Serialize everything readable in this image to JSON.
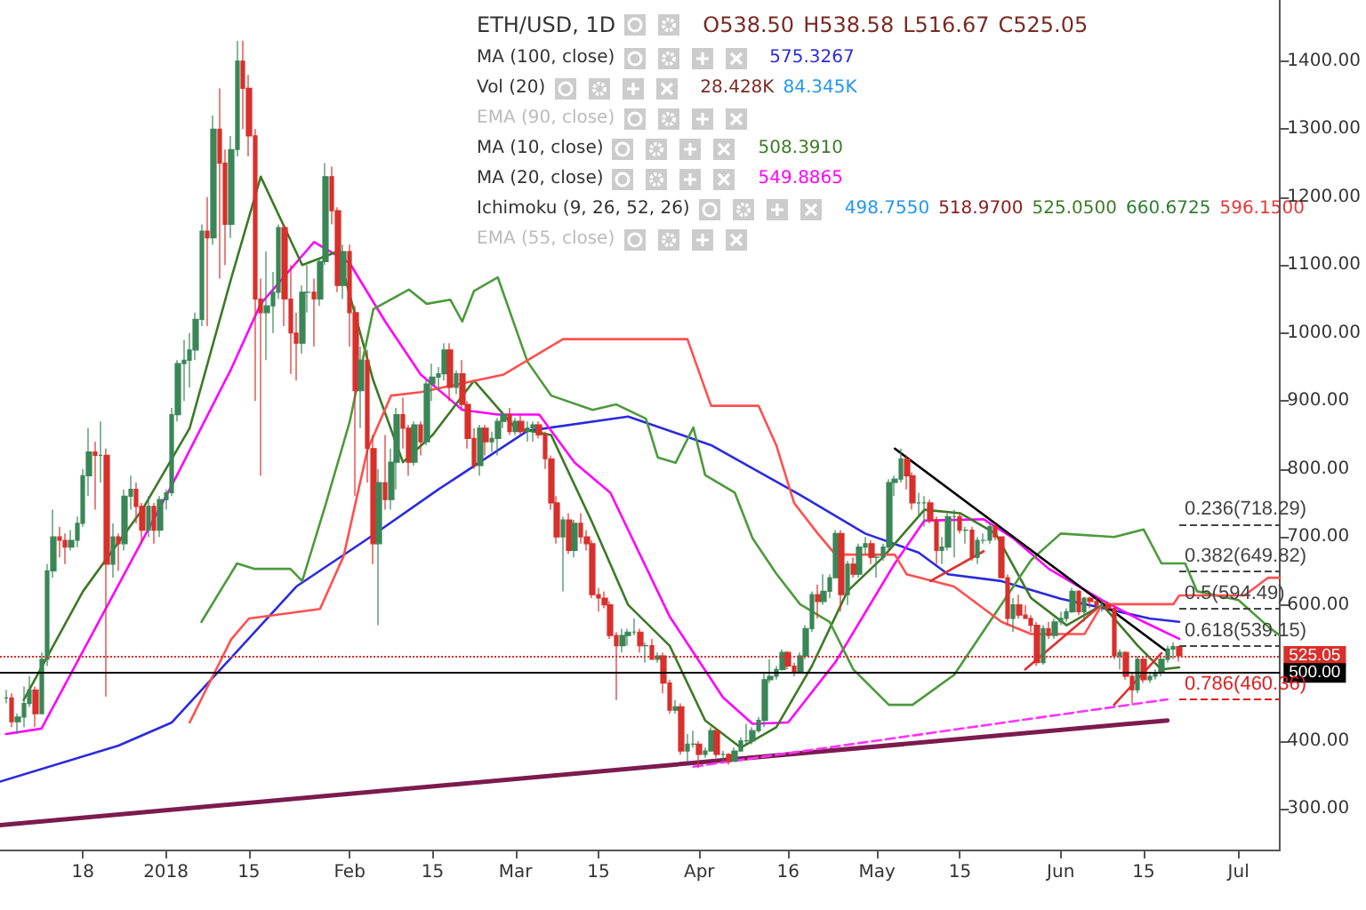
{
  "chart_data": {
    "type": "candlestick",
    "annotations": [
      "ETH/USD, 1D",
      "O538.50",
      "H538.58",
      "L516.67",
      "C525.05",
      "MA (100, close)",
      "575.3267",
      "Vol (20)",
      "28.428K",
      "84.345K",
      "EMA (90, close)",
      "MA (10, close)",
      "508.3910",
      "MA (20, close)",
      "549.8865",
      "Ichimoku (9, 26, 52, 26)",
      "498.7550",
      "518.9700",
      "525.0500",
      "660.6725",
      "596.1500",
      "EMA (55, close)"
    ],
    "colors": [
      "#3b8657",
      "#d8302b",
      "#3b8657",
      "#3b8657",
      "#3b8657",
      "#d8302b",
      "#3b8657",
      "#3b8657",
      "#3b8657",
      "#d8302b",
      "#d8302b",
      "#3b8657",
      "#3b8657",
      "#3b8657",
      "#3b8657",
      "#d8302b",
      "#3b8657",
      "#d8302b",
      "#3b8657",
      "#d8302b",
      "#3b8657",
      "#3b8657",
      "#d8302b",
      "#d8302b",
      "#3b8657",
      "#d8302b",
      "#3b8657",
      "#3b8657",
      "#3b8657",
      "#3b8657",
      "#3b8657",
      "#3b8657",
      "#3b8657",
      "#3b8657",
      "#d8302b",
      "#3b8657",
      "#d8302b",
      "#d8302b",
      "#3b8657",
      "#3b8657",
      "#d8302b",
      "#d8302b",
      "#d8302b",
      "#d8302b",
      "#3b8657",
      "#3b8657",
      "#3b8657",
      "#d8302b",
      "#d8302b",
      "#d8302b",
      "#3b8657",
      "#3b8657",
      "#d8302b",
      "#3b8657",
      "#3b8657",
      "#d8302b",
      "#d8302b",
      "#3b8657",
      "#d8302b",
      "#d8302b",
      "#3b8657",
      "#d8302b",
      "#d8302b",
      "#3b8657",
      "#d8302b",
      "#3b8657",
      "#3b8657",
      "#d8302b",
      "#d8302b",
      "#3b8657",
      "#d8302b",
      "#3b8657",
      "#3b8657",
      "#3b8657",
      "#3b8657",
      "#d8302b",
      "#3b8657",
      "#d8302b",
      "#d8302b",
      "#d8302b",
      "#3b8657",
      "#d8302b",
      "#3b8657",
      "#3b8657",
      "#3b8657",
      "#d8302b",
      "#3b8657",
      "#d8302b",
      "#3b8657",
      "#3b8657",
      "#d8302b",
      "#d8302b",
      "#d8302b",
      "#d8302b",
      "#3b8657",
      "#d8302b",
      "#3b8657",
      "#d8302b",
      "#d8302b",
      "#d8302b",
      "#d8302b",
      "#d8302b",
      "#d8302b",
      "#d8302b",
      "#3b8657",
      "#3b8657",
      "#3b8657",
      "#d8302b",
      "#3b8657",
      "#d8302b",
      "#3b8657",
      "#d8302b",
      "#d8302b",
      "#3b8657",
      "#d8302b",
      "#3b8657",
      "#3b8657",
      "#d8302b",
      "#3b8657",
      "#3b8657",
      "#d8302b",
      "#3b8657",
      "#d8302b",
      "#3b8657",
      "#3b8657",
      "#3b8657",
      "#3b8657",
      "#3b8657",
      "#3b8657",
      "#3b8657",
      "#3b8657",
      "#3b8657",
      "#d8302b",
      "#d8302b",
      "#3b8657",
      "#3b8657",
      "#3b8657",
      "#d8302b",
      "#3b8657",
      "#3b8657",
      "#3b8657",
      "#d8302b",
      "#3b8657",
      "#d8302b",
      "#3b8657",
      "#3b8657",
      "#d8302b",
      "#3b8657",
      "#3b8657",
      "#3b8657",
      "#3b8657",
      "#3b8657",
      "#d8302b",
      "#d8302b",
      "#3b8657",
      "#3b8657",
      "#d8302b",
      "#d8302b",
      "#3b8657",
      "#3b8657",
      "#3b8657",
      "#d8302b",
      "#3b8657",
      "#d8302b",
      "#3b8657",
      "#3b8657",
      "#3b8657",
      "#d8302b",
      "#d8302b",
      "#d8302b",
      "#3b8657",
      "#d8302b",
      "#d8302b",
      "#d8302b",
      "#d8302b",
      "#3b8657",
      "#d8302b",
      "#3b8657",
      "#3b8657",
      "#3b8657",
      "#3b8657",
      "#d8302b",
      "#3b8657",
      "#d8302b",
      "#d8302b",
      "#3b8657",
      "#d8302b",
      "#d8302b",
      "#3b8657",
      "#d8302b",
      "#d8302b",
      "#3b8657",
      "#d8302b",
      "#3b8657",
      "#3b8657",
      "#3b8657",
      "#3b8657",
      "#3b8657",
      "#d8302b"
    ],
    "x": [
      "2017-12-05",
      "2017-12-06",
      "2017-12-07",
      "2017-12-08",
      "2017-12-09",
      "2017-12-10",
      "2017-12-11",
      "2017-12-12",
      "2017-12-13",
      "2017-12-14",
      "2017-12-15",
      "2017-12-16",
      "2017-12-17",
      "2017-12-18",
      "2017-12-19",
      "2017-12-20",
      "2017-12-21",
      "2017-12-22",
      "2017-12-23",
      "2017-12-24",
      "2017-12-25",
      "2017-12-26",
      "2017-12-27",
      "2017-12-28",
      "2017-12-29",
      "2017-12-30",
      "2017-12-31",
      "2018-01-01",
      "2018-01-02",
      "2018-01-03",
      "2018-01-04",
      "2018-01-05",
      "2018-01-06",
      "2018-01-07",
      "2018-01-08",
      "2018-01-09",
      "2018-01-10",
      "2018-01-11",
      "2018-01-12",
      "2018-01-13",
      "2018-01-14",
      "2018-01-15",
      "2018-01-16",
      "2018-01-17",
      "2018-01-18",
      "2018-01-19",
      "2018-01-20",
      "2018-01-21",
      "2018-01-22",
      "2018-01-23",
      "2018-01-24",
      "2018-01-25",
      "2018-01-26",
      "2018-01-27",
      "2018-01-28",
      "2018-01-29",
      "2018-01-30",
      "2018-01-31",
      "2018-02-01",
      "2018-02-02",
      "2018-02-03",
      "2018-02-04",
      "2018-02-05",
      "2018-02-06",
      "2018-02-07",
      "2018-02-08",
      "2018-02-09",
      "2018-02-10",
      "2018-02-11",
      "2018-02-12",
      "2018-02-13",
      "2018-02-14",
      "2018-02-15",
      "2018-02-16",
      "2018-02-17",
      "2018-02-18",
      "2018-02-19",
      "2018-02-20",
      "2018-02-21",
      "2018-02-22",
      "2018-02-23",
      "2018-02-24",
      "2018-02-25",
      "2018-02-26",
      "2018-02-27",
      "2018-02-28",
      "2018-03-01",
      "2018-03-02",
      "2018-03-03",
      "2018-03-04",
      "2018-03-05",
      "2018-03-06",
      "2018-03-07",
      "2018-03-08",
      "2018-03-09",
      "2018-03-10",
      "2018-03-11",
      "2018-03-12",
      "2018-03-13",
      "2018-03-14",
      "2018-03-15",
      "2018-03-16",
      "2018-03-17",
      "2018-03-18",
      "2018-03-19",
      "2018-03-20",
      "2018-03-21",
      "2018-03-22",
      "2018-03-23",
      "2018-03-24",
      "2018-03-25",
      "2018-03-26",
      "2018-03-27",
      "2018-03-28",
      "2018-03-29",
      "2018-03-30",
      "2018-03-31",
      "2018-04-01",
      "2018-04-02",
      "2018-04-03",
      "2018-04-04",
      "2018-04-05",
      "2018-04-06",
      "2018-04-07",
      "2018-04-08",
      "2018-04-09",
      "2018-04-10",
      "2018-04-11",
      "2018-04-12",
      "2018-04-13",
      "2018-04-14",
      "2018-04-15",
      "2018-04-16",
      "2018-04-17",
      "2018-04-18",
      "2018-04-19",
      "2018-04-20",
      "2018-04-21",
      "2018-04-22",
      "2018-04-23",
      "2018-04-24",
      "2018-04-25",
      "2018-04-26",
      "2018-04-27",
      "2018-04-28",
      "2018-04-29",
      "2018-04-30",
      "2018-05-01",
      "2018-05-02",
      "2018-05-03",
      "2018-05-04",
      "2018-05-05",
      "2018-05-06",
      "2018-05-07",
      "2018-05-08",
      "2018-05-09",
      "2018-05-10",
      "2018-05-11",
      "2018-05-12",
      "2018-05-13",
      "2018-05-14",
      "2018-05-15",
      "2018-05-16",
      "2018-05-17",
      "2018-05-18",
      "2018-05-19",
      "2018-05-20",
      "2018-05-21",
      "2018-05-22",
      "2018-05-23",
      "2018-05-24",
      "2018-05-25",
      "2018-05-26",
      "2018-05-27",
      "2018-05-28",
      "2018-05-29",
      "2018-05-30",
      "2018-05-31",
      "2018-06-01",
      "2018-06-02",
      "2018-06-03",
      "2018-06-04",
      "2018-06-05",
      "2018-06-06",
      "2018-06-07",
      "2018-06-08",
      "2018-06-09",
      "2018-06-10",
      "2018-06-11",
      "2018-06-12",
      "2018-06-13",
      "2018-06-14",
      "2018-06-15",
      "2018-06-16",
      "2018-06-17",
      "2018-06-18",
      "2018-06-19",
      "2018-06-20",
      "2018-06-21"
    ],
    "ohlc": [
      [
        463,
        475,
        455,
        463
      ],
      [
        463,
        470,
        420,
        428
      ],
      [
        428,
        440,
        410,
        435
      ],
      [
        435,
        480,
        420,
        455
      ],
      [
        455,
        495,
        450,
        475
      ],
      [
        475,
        480,
        420,
        440
      ],
      [
        440,
        530,
        440,
        520
      ],
      [
        520,
        660,
        510,
        650
      ],
      [
        650,
        740,
        640,
        700
      ],
      [
        700,
        715,
        670,
        695
      ],
      [
        695,
        705,
        660,
        685
      ],
      [
        685,
        710,
        680,
        695
      ],
      [
        695,
        730,
        685,
        720
      ],
      [
        720,
        800,
        715,
        790
      ],
      [
        790,
        860,
        760,
        825
      ],
      [
        825,
        840,
        740,
        820
      ],
      [
        820,
        870,
        780,
        820
      ],
      [
        820,
        830,
        465,
        660
      ],
      [
        660,
        720,
        640,
        700
      ],
      [
        700,
        705,
        650,
        690
      ],
      [
        690,
        770,
        680,
        760
      ],
      [
        760,
        790,
        740,
        770
      ],
      [
        770,
        780,
        720,
        745
      ],
      [
        745,
        750,
        690,
        710
      ],
      [
        710,
        760,
        700,
        745
      ],
      [
        745,
        750,
        690,
        710
      ],
      [
        710,
        760,
        700,
        755
      ],
      [
        755,
        770,
        740,
        765
      ],
      [
        765,
        890,
        760,
        880
      ],
      [
        880,
        960,
        870,
        955
      ],
      [
        955,
        990,
        900,
        960
      ],
      [
        960,
        1000,
        920,
        975
      ],
      [
        975,
        1030,
        960,
        1020
      ],
      [
        1020,
        1160,
        1010,
        1150
      ],
      [
        1150,
        1200,
        1010,
        1140
      ],
      [
        1140,
        1320,
        1130,
        1300
      ],
      [
        1300,
        1360,
        1080,
        1250
      ],
      [
        1250,
        1270,
        1100,
        1160
      ],
      [
        1160,
        1290,
        1140,
        1270
      ],
      [
        1270,
        1430,
        1260,
        1400
      ],
      [
        1400,
        1430,
        1300,
        1360
      ],
      [
        1360,
        1380,
        1260,
        1290
      ],
      [
        1290,
        1300,
        900,
        1050
      ],
      [
        1050,
        1080,
        790,
        1030
      ],
      [
        1030,
        1120,
        960,
        1040
      ],
      [
        1040,
        1090,
        1000,
        1060
      ],
      [
        1060,
        1160,
        1050,
        1155
      ],
      [
        1155,
        1160,
        1010,
        1050
      ],
      [
        1050,
        1100,
        940,
        1000
      ],
      [
        1000,
        1030,
        930,
        985
      ],
      [
        985,
        1070,
        970,
        1060
      ],
      [
        1060,
        1100,
        1030,
        1060
      ],
      [
        1060,
        1080,
        980,
        1050
      ],
      [
        1050,
        1110,
        1040,
        1105
      ],
      [
        1105,
        1250,
        1100,
        1230
      ],
      [
        1230,
        1245,
        1160,
        1180
      ],
      [
        1180,
        1185,
        1060,
        1070
      ],
      [
        1070,
        1130,
        1050,
        1120
      ],
      [
        1120,
        1130,
        980,
        1030
      ],
      [
        1030,
        1040,
        760,
        915
      ],
      [
        915,
        980,
        860,
        960
      ],
      [
        960,
        975,
        780,
        830
      ],
      [
        830,
        850,
        660,
        690
      ],
      [
        690,
        800,
        570,
        780
      ],
      [
        780,
        850,
        740,
        755
      ],
      [
        755,
        830,
        740,
        810
      ],
      [
        810,
        890,
        770,
        880
      ],
      [
        880,
        905,
        830,
        860
      ],
      [
        860,
        865,
        790,
        810
      ],
      [
        810,
        870,
        805,
        865
      ],
      [
        865,
        870,
        820,
        840
      ],
      [
        840,
        930,
        835,
        925
      ],
      [
        925,
        955,
        900,
        935
      ],
      [
        935,
        950,
        915,
        940
      ],
      [
        940,
        985,
        930,
        975
      ],
      [
        975,
        985,
        900,
        920
      ],
      [
        920,
        945,
        910,
        940
      ],
      [
        940,
        960,
        890,
        895
      ],
      [
        895,
        900,
        830,
        845
      ],
      [
        845,
        860,
        800,
        805
      ],
      [
        805,
        865,
        790,
        860
      ],
      [
        860,
        865,
        820,
        840
      ],
      [
        840,
        855,
        825,
        845
      ],
      [
        845,
        875,
        820,
        870
      ],
      [
        870,
        885,
        860,
        880
      ],
      [
        880,
        890,
        850,
        855
      ],
      [
        855,
        875,
        850,
        870
      ],
      [
        870,
        880,
        850,
        855
      ],
      [
        855,
        870,
        840,
        860
      ],
      [
        860,
        870,
        840,
        865
      ],
      [
        865,
        870,
        845,
        850
      ],
      [
        850,
        855,
        800,
        815
      ],
      [
        815,
        820,
        740,
        750
      ],
      [
        750,
        760,
        690,
        700
      ],
      [
        700,
        730,
        620,
        725
      ],
      [
        725,
        735,
        675,
        680
      ],
      [
        680,
        725,
        670,
        720
      ],
      [
        720,
        735,
        690,
        700
      ],
      [
        700,
        710,
        680,
        690
      ],
      [
        690,
        695,
        610,
        615
      ],
      [
        615,
        625,
        590,
        610
      ],
      [
        610,
        620,
        595,
        600
      ],
      [
        600,
        605,
        550,
        555
      ],
      [
        555,
        560,
        460,
        540
      ],
      [
        540,
        565,
        530,
        555
      ],
      [
        555,
        565,
        540,
        560
      ],
      [
        560,
        580,
        555,
        560
      ],
      [
        560,
        565,
        530,
        540
      ],
      [
        540,
        545,
        515,
        540
      ],
      [
        540,
        550,
        520,
        520
      ],
      [
        520,
        530,
        515,
        525
      ],
      [
        525,
        530,
        470,
        485
      ],
      [
        485,
        490,
        440,
        445
      ],
      [
        445,
        460,
        440,
        450
      ],
      [
        450,
        455,
        380,
        385
      ],
      [
        385,
        410,
        370,
        395
      ],
      [
        395,
        415,
        390,
        395
      ],
      [
        395,
        400,
        360,
        380
      ],
      [
        380,
        390,
        375,
        385
      ],
      [
        385,
        420,
        385,
        415
      ],
      [
        415,
        415,
        375,
        380
      ],
      [
        380,
        385,
        370,
        380
      ],
      [
        380,
        382,
        365,
        370
      ],
      [
        370,
        390,
        370,
        385
      ],
      [
        385,
        405,
        385,
        400
      ],
      [
        400,
        425,
        395,
        400
      ],
      [
        400,
        420,
        395,
        415
      ],
      [
        415,
        435,
        412,
        430
      ],
      [
        430,
        500,
        420,
        490
      ],
      [
        490,
        520,
        485,
        495
      ],
      [
        495,
        510,
        490,
        505
      ],
      [
        505,
        535,
        503,
        530
      ],
      [
        530,
        532,
        505,
        510
      ],
      [
        510,
        515,
        495,
        500
      ],
      [
        500,
        530,
        500,
        525
      ],
      [
        525,
        570,
        520,
        565
      ],
      [
        565,
        620,
        560,
        615
      ],
      [
        615,
        630,
        580,
        605
      ],
      [
        605,
        645,
        600,
        620
      ],
      [
        620,
        645,
        610,
        640
      ],
      [
        640,
        710,
        640,
        705
      ],
      [
        705,
        710,
        590,
        615
      ],
      [
        615,
        665,
        600,
        660
      ],
      [
        660,
        670,
        640,
        645
      ],
      [
        645,
        690,
        640,
        685
      ],
      [
        685,
        700,
        675,
        690
      ],
      [
        690,
        695,
        660,
        670
      ],
      [
        670,
        675,
        640,
        670
      ],
      [
        670,
        690,
        665,
        685
      ],
      [
        685,
        785,
        680,
        780
      ],
      [
        780,
        790,
        760,
        785
      ],
      [
        785,
        830,
        780,
        815
      ],
      [
        815,
        820,
        770,
        790
      ],
      [
        790,
        795,
        740,
        750
      ],
      [
        750,
        765,
        730,
        750
      ],
      [
        750,
        760,
        715,
        750
      ],
      [
        750,
        755,
        720,
        725
      ],
      [
        725,
        730,
        660,
        680
      ],
      [
        680,
        700,
        660,
        685
      ],
      [
        685,
        735,
        680,
        730
      ],
      [
        730,
        740,
        670,
        730
      ],
      [
        730,
        735,
        705,
        710
      ],
      [
        710,
        715,
        690,
        710
      ],
      [
        710,
        715,
        665,
        670
      ],
      [
        670,
        700,
        660,
        695
      ],
      [
        695,
        705,
        690,
        695
      ],
      [
        695,
        720,
        690,
        715
      ],
      [
        715,
        720,
        695,
        700
      ],
      [
        700,
        700,
        640,
        640
      ],
      [
        640,
        645,
        570,
        580
      ],
      [
        580,
        610,
        560,
        600
      ],
      [
        600,
        615,
        580,
        585
      ],
      [
        585,
        600,
        580,
        580
      ],
      [
        580,
        585,
        560,
        570
      ],
      [
        570,
        575,
        510,
        515
      ],
      [
        515,
        570,
        512,
        565
      ],
      [
        565,
        575,
        550,
        555
      ],
      [
        555,
        580,
        550,
        575
      ],
      [
        575,
        590,
        570,
        580
      ],
      [
        580,
        595,
        575,
        590
      ],
      [
        590,
        625,
        588,
        620
      ],
      [
        620,
        622,
        585,
        590
      ],
      [
        590,
        612,
        575,
        610
      ],
      [
        610,
        612,
        595,
        605
      ],
      [
        605,
        610,
        595,
        600
      ],
      [
        600,
        608,
        590,
        600
      ],
      [
        600,
        605,
        590,
        595
      ],
      [
        595,
        598,
        520,
        525
      ],
      [
        525,
        535,
        505,
        530
      ],
      [
        530,
        532,
        490,
        495
      ],
      [
        495,
        500,
        455,
        475
      ],
      [
        475,
        525,
        470,
        520
      ],
      [
        520,
        522,
        485,
        490
      ],
      [
        490,
        500,
        485,
        495
      ],
      [
        495,
        505,
        490,
        500
      ],
      [
        500,
        525,
        495,
        520
      ],
      [
        520,
        540,
        515,
        535
      ],
      [
        535,
        545,
        520,
        538.5
      ],
      [
        538.5,
        538.58,
        516.67,
        525.05
      ]
    ],
    "series": [
      {
        "type": "line",
        "color": "#2a2ae0",
        "x": [
          "2017-12-04",
          "2017-12-24",
          "2018-01-02",
          "2018-01-23",
          "2018-02-04",
          "2018-02-16",
          "2018-03-03",
          "2018-03-20",
          "2018-04-03",
          "2018-04-18",
          "2018-04-29",
          "2018-05-08",
          "2018-05-13",
          "2018-05-22",
          "2018-06-01",
          "2018-06-16",
          "2018-06-21"
        ],
        "values": [
          340,
          393,
          427,
          627,
          697,
          770,
          856,
          877,
          835,
          762,
          705,
          677,
          645,
          635,
          609,
          580,
          575
        ]
      },
      {
        "type": "line",
        "color": "#ff00ff",
        "x": [
          "2017-12-05",
          "2017-12-11",
          "2018-01-02",
          "2018-01-12",
          "2018-01-17",
          "2018-01-26",
          "2018-02-01",
          "2018-02-07",
          "2018-02-13",
          "2018-02-20",
          "2018-02-26",
          "2018-03-05",
          "2018-03-11",
          "2018-03-17",
          "2018-03-27",
          "2018-04-05",
          "2018-04-10",
          "2018-04-16",
          "2018-04-24",
          "2018-05-04",
          "2018-05-09",
          "2018-05-19",
          "2018-05-24",
          "2018-05-30",
          "2018-06-08",
          "2018-06-15",
          "2018-06-21"
        ],
        "values": [
          410,
          418,
          776,
          947,
          1043,
          1134,
          1103,
          1017,
          939,
          887,
          880,
          880,
          809,
          765,
          583,
          464,
          425,
          427,
          516,
          661,
          724,
          726,
          698,
          653,
          607,
          575,
          550
        ]
      },
      {
        "type": "line",
        "color": "#3d7a26",
        "x": [
          "2017-12-08",
          "2017-12-18",
          "2017-12-28",
          "2018-01-05",
          "2018-01-12",
          "2018-01-17",
          "2018-01-24",
          "2018-01-30",
          "2018-02-05",
          "2018-02-10",
          "2018-02-15",
          "2018-02-22",
          "2018-03-01",
          "2018-03-07",
          "2018-03-14",
          "2018-03-20",
          "2018-03-27",
          "2018-04-02",
          "2018-04-08",
          "2018-04-14",
          "2018-04-20",
          "2018-04-26",
          "2018-05-02",
          "2018-05-09",
          "2018-05-15",
          "2018-05-21",
          "2018-05-27",
          "2018-06-02",
          "2018-06-08",
          "2018-06-14",
          "2018-06-18",
          "2018-06-21"
        ],
        "values": [
          460,
          620,
          740,
          860,
          1080,
          1230,
          1100,
          1120,
          930,
          810,
          850,
          930,
          860,
          850,
          720,
          600,
          540,
          430,
          390,
          420,
          510,
          620,
          670,
          740,
          735,
          705,
          610,
          570,
          600,
          540,
          505,
          508
        ]
      },
      {
        "type": "line",
        "color": "#4c9a3c",
        "x": [
          "2018-01-07",
          "2018-01-13",
          "2018-01-16",
          "2018-01-22",
          "2018-01-24",
          "2018-01-28",
          "2018-02-01",
          "2018-02-05",
          "2018-02-11",
          "2018-02-14",
          "2018-02-18",
          "2018-02-20",
          "2018-02-22",
          "2018-02-26",
          "2018-03-03",
          "2018-03-07",
          "2018-03-14",
          "2018-03-18",
          "2018-03-23",
          "2018-03-25",
          "2018-03-28",
          "2018-03-31",
          "2018-04-02",
          "2018-04-07",
          "2018-04-10",
          "2018-04-14",
          "2018-04-18",
          "2018-04-23",
          "2018-04-27",
          "2018-05-03",
          "2018-05-07",
          "2018-05-14",
          "2018-05-22",
          "2018-05-27",
          "2018-06-01",
          "2018-06-10",
          "2018-06-15",
          "2018-06-18",
          "2018-06-22",
          "2018-06-24",
          "2018-07-01",
          "2018-07-06",
          "2018-07-08"
        ],
        "values": [
          575,
          661,
          653,
          653,
          635,
          749,
          869,
          1035,
          1064,
          1043,
          1049,
          1017,
          1062,
          1082,
          958,
          908,
          887,
          895,
          874,
          817,
          809,
          861,
          791,
          765,
          698,
          646,
          601,
          575,
          505,
          453,
          453,
          497,
          601,
          666,
          705,
          700,
          711,
          661,
          661,
          620,
          607,
          568,
          555
        ]
      },
      {
        "type": "line",
        "color": "#ff5050",
        "x": [
          "2018-01-05",
          "2018-01-12",
          "2018-01-15",
          "2018-01-27",
          "2018-01-31",
          "2018-02-04",
          "2018-02-08",
          "2018-02-13",
          "2018-02-27",
          "2018-03-09",
          "2018-03-30",
          "2018-04-03",
          "2018-04-11",
          "2018-04-14",
          "2018-04-17",
          "2018-04-21",
          "2018-04-24",
          "2018-05-04",
          "2018-05-06",
          "2018-05-14",
          "2018-05-22",
          "2018-05-27",
          "2018-06-05",
          "2018-06-08",
          "2018-06-20",
          "2018-06-21",
          "2018-07-02",
          "2018-07-06",
          "2018-07-08"
        ],
        "values": [
          427,
          549,
          580,
          594,
          672,
          828,
          908,
          913,
          939,
          991,
          991,
          893,
          893,
          835,
          750,
          705,
          674,
          674,
          645,
          627,
          575,
          557,
          557,
          601,
          601,
          614,
          614,
          640,
          640
        ]
      },
      {
        "type": "line",
        "color": "#000000",
        "x": [
          "2018-05-04",
          "2018-06-19"
        ],
        "values": [
          830,
          531
        ]
      },
      {
        "type": "line",
        "color": "#7b1b4f",
        "x": [
          "2017-12-04",
          "2018-06-19"
        ],
        "values": [
          276,
          430
        ]
      },
      {
        "type": "line",
        "color": "#ff33ff",
        "line_style": "dashed",
        "x": [
          "2018-03-31",
          "2018-06-19"
        ],
        "values": [
          362,
          461
        ]
      },
      {
        "type": "line",
        "color": "#e03030",
        "x": [
          "2018-05-10",
          "2018-05-19"
        ],
        "values": [
          635,
          679
        ]
      },
      {
        "type": "line",
        "color": "#e03030",
        "x": [
          "2018-05-26",
          "2018-06-07"
        ],
        "values": [
          505,
          594
        ]
      },
      {
        "type": "line",
        "color": "#e03030",
        "x": [
          "2018-06-10",
          "2018-06-18"
        ],
        "values": [
          453,
          529
        ]
      }
    ],
    "ref_lines": [
      {
        "axis": "y",
        "value": 525.05,
        "label": "525.05",
        "color": "#d8302b",
        "line_style": "dotted"
      },
      {
        "axis": "y",
        "value": 500,
        "label": "500.00",
        "color": "#000000",
        "line_style": "solid"
      },
      {
        "axis": "y",
        "value": 718.29,
        "label": "0.236(718.29)",
        "color": "#444444",
        "line_style": "dashed"
      },
      {
        "axis": "y",
        "value": 649.82,
        "label": "0.382(649.82)",
        "color": "#444444",
        "line_style": "dashed"
      },
      {
        "axis": "y",
        "value": 594.49,
        "label": "0.5(594.49)",
        "color": "#444444",
        "line_style": "dashed"
      },
      {
        "axis": "y",
        "value": 539.15,
        "label": "0.618(539.15)",
        "color": "#444444",
        "line_style": "dashed"
      },
      {
        "axis": "y",
        "value": 460.36,
        "label": "0.786(460.36)",
        "color": "#e02020",
        "line_style": "dashed"
      }
    ],
    "xlim": [
      "2017-12-04",
      "2018-07-08"
    ],
    "xticks": [
      {
        "value": "2017-12-18",
        "label": "18"
      },
      {
        "value": "2018-01-01",
        "label": "2018"
      },
      {
        "value": "2018-01-15",
        "label": "15"
      },
      {
        "value": "2018-02-01",
        "label": "Feb"
      },
      {
        "value": "2018-02-15",
        "label": "15"
      },
      {
        "value": "2018-03-01",
        "label": "Mar"
      },
      {
        "value": "2018-03-15",
        "label": "15"
      },
      {
        "value": "2018-04-01",
        "label": "Apr"
      },
      {
        "value": "2018-04-16",
        "label": "16"
      },
      {
        "value": "2018-05-01",
        "label": "May"
      },
      {
        "value": "2018-05-15",
        "label": "15"
      },
      {
        "value": "2018-06-01",
        "label": "Jun"
      },
      {
        "value": "2018-06-15",
        "label": "15"
      },
      {
        "value": "2018-07-01",
        "label": "Jul"
      }
    ],
    "ylim": [
      240,
      1490
    ],
    "yticks": [
      {
        "value": 300,
        "label": "300.00"
      },
      {
        "value": 400,
        "label": "400.00"
      },
      {
        "value": 600,
        "label": "600.00"
      },
      {
        "value": 700,
        "label": "700.00"
      },
      {
        "value": 800,
        "label": "800.00"
      },
      {
        "value": 900,
        "label": "900.00"
      },
      {
        "value": 1000,
        "label": "1000.00"
      },
      {
        "value": 1100,
        "label": "1100.00"
      },
      {
        "value": 1200,
        "label": "1200.00"
      },
      {
        "value": 1300,
        "label": "1300.00"
      },
      {
        "value": 1400,
        "label": "1400.00"
      }
    ]
  }
}
